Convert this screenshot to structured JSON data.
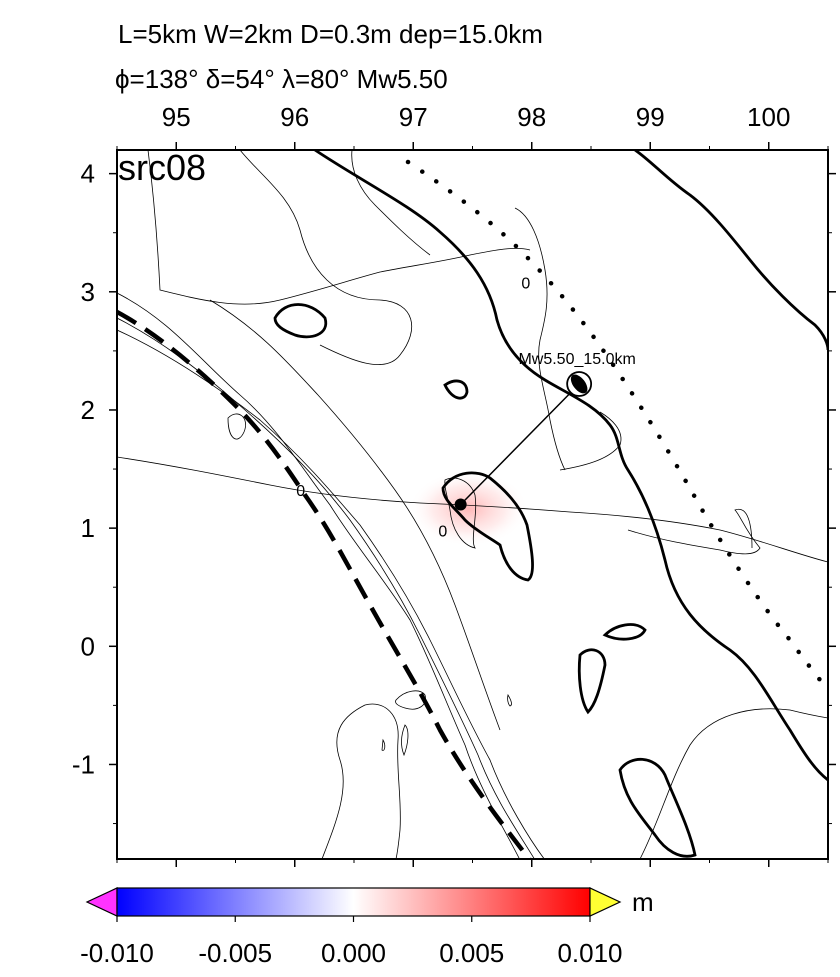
{
  "header": {
    "line1": "L=5km W=2km D=0.3m dep=15.0km",
    "line2": "ϕ=138° δ=54° λ=80° Mw5.50"
  },
  "panel_label": "src08",
  "map": {
    "lon_range": [
      94.5,
      100.5
    ],
    "lat_range": [
      -1.8,
      4.2
    ],
    "lon_ticks": [
      {
        "value": 95,
        "label": "95"
      },
      {
        "value": 96,
        "label": "96"
      },
      {
        "value": 97,
        "label": "97"
      },
      {
        "value": 98,
        "label": "98"
      },
      {
        "value": 99,
        "label": "99"
      },
      {
        "value": 100,
        "label": "100"
      }
    ],
    "lat_ticks": [
      {
        "value": 4,
        "label": "4"
      },
      {
        "value": 3,
        "label": "3"
      },
      {
        "value": 2,
        "label": "2"
      },
      {
        "value": 1,
        "label": "1"
      },
      {
        "value": 0,
        "label": "0"
      },
      {
        "value": -1,
        "label": "-1"
      }
    ],
    "source": {
      "lon": 97.4,
      "lat": 1.2
    },
    "mechanism": {
      "lon": 98.4,
      "lat": 2.22,
      "label": "Mw5.50_15.0km"
    },
    "contour_labels": [
      {
        "text": "0",
        "lon": 97.95,
        "lat": 3.03
      },
      {
        "text": "0",
        "lon": 96.05,
        "lat": 1.27
      },
      {
        "text": "0",
        "lon": 97.25,
        "lat": 0.93
      }
    ]
  },
  "colorbar": {
    "unit": "m",
    "ticks": [
      "-0.010",
      "-0.005",
      "0.000",
      "0.005",
      "0.010"
    ],
    "colors": {
      "low": "#0000ff",
      "mid": "#ffffff",
      "high": "#ff0000",
      "under": "#ff33ff",
      "over": "#ffff33"
    }
  }
}
